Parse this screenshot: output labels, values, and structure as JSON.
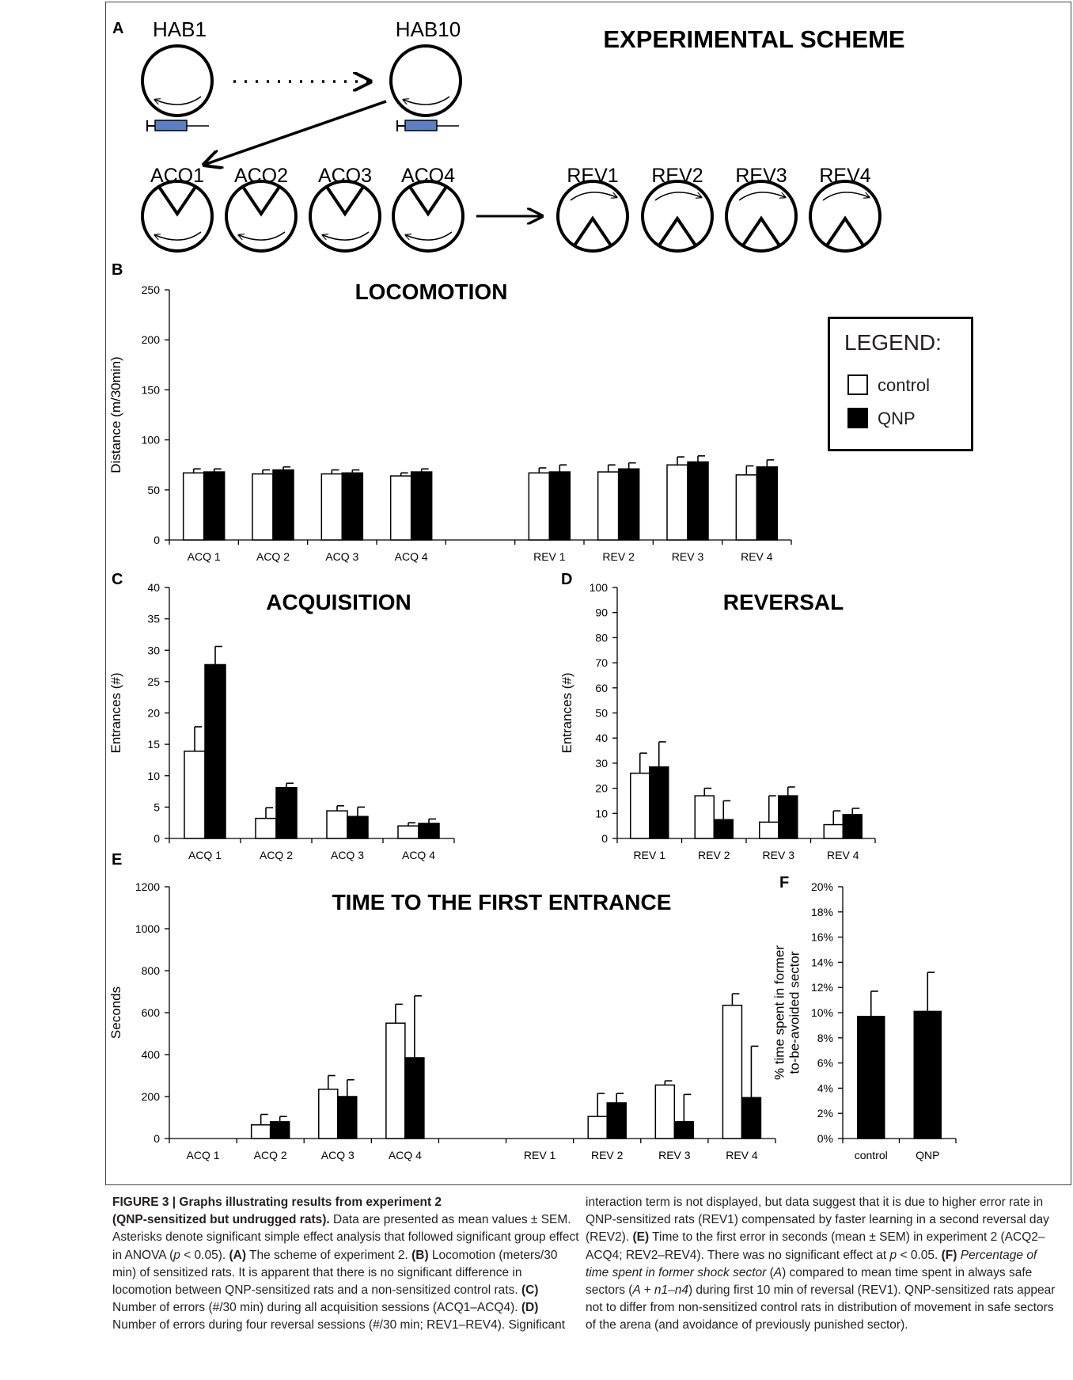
{
  "panels": {
    "A": {
      "label": "A",
      "title": "EXPERIMENTAL SCHEME",
      "habituation": [
        "HAB1",
        "HAB10"
      ],
      "acquisition": [
        "ACQ1",
        "ACQ2",
        "ACQ3",
        "ACQ4"
      ],
      "reversal": [
        "REV1",
        "REV2",
        "REV3",
        "REV4"
      ]
    },
    "B": {
      "label": "B"
    },
    "C": {
      "label": "C"
    },
    "D": {
      "label": "D"
    },
    "E": {
      "label": "E"
    },
    "F": {
      "label": "F"
    }
  },
  "legend": {
    "title": "LEGEND:",
    "items": [
      {
        "label": "control",
        "color": "#ffffff"
      },
      {
        "label": "QNP",
        "color": "#000000"
      }
    ]
  },
  "colors": {
    "control": "#ffffff",
    "qnp": "#000000",
    "scheme_syringe": "#5b7fc4"
  },
  "chart_data": [
    {
      "id": "B",
      "type": "bar",
      "title": "LOCOMOTION",
      "ylabel": "Distance (m/30min)",
      "ylim": [
        0,
        250
      ],
      "yticks": [
        "0",
        "50",
        "100",
        "150",
        "200",
        "250"
      ],
      "categories": [
        "ACQ 1",
        "ACQ 2",
        "ACQ 3",
        "ACQ 4",
        "",
        "REV 1",
        "REV 2",
        "REV 3",
        "REV 4"
      ],
      "series": [
        {
          "name": "control",
          "values": [
            67,
            66,
            66,
            64,
            null,
            67,
            68,
            75,
            65
          ],
          "errors": [
            4,
            4,
            4,
            3,
            null,
            5,
            7,
            8,
            9
          ]
        },
        {
          "name": "QNP",
          "values": [
            68,
            70,
            67,
            68,
            null,
            68,
            71,
            78,
            73
          ],
          "errors": [
            3,
            3,
            3,
            3,
            null,
            7,
            6,
            6,
            7
          ]
        }
      ]
    },
    {
      "id": "C",
      "type": "bar",
      "title": "ACQUISITION",
      "ylabel": "Entrances (#)",
      "ylim": [
        0,
        40
      ],
      "yticks": [
        "0",
        "5",
        "10",
        "15",
        "20",
        "25",
        "30",
        "35",
        "40"
      ],
      "categories": [
        "ACQ 1",
        "ACQ 2",
        "ACQ 3",
        "ACQ 4"
      ],
      "series": [
        {
          "name": "control",
          "values": [
            13.9,
            3.2,
            4.4,
            2.0
          ],
          "errors": [
            3.9,
            1.7,
            0.8,
            0.5
          ]
        },
        {
          "name": "QNP",
          "values": [
            27.7,
            8.1,
            3.5,
            2.4
          ],
          "errors": [
            2.9,
            0.7,
            1.5,
            0.7
          ]
        }
      ]
    },
    {
      "id": "D",
      "type": "bar",
      "title": "REVERSAL",
      "ylabel": "Entrances (#)",
      "ylim": [
        0,
        100
      ],
      "yticks": [
        "0",
        "10",
        "20",
        "30",
        "40",
        "50",
        "60",
        "70",
        "80",
        "90",
        "100"
      ],
      "categories": [
        "REV 1",
        "REV 2",
        "REV 3",
        "REV 4"
      ],
      "series": [
        {
          "name": "control",
          "values": [
            26,
            17,
            6.5,
            5.5
          ],
          "errors": [
            8,
            3,
            10.5,
            5.5
          ]
        },
        {
          "name": "QNP",
          "values": [
            28.5,
            7.5,
            17,
            9.5
          ],
          "errors": [
            10,
            7.5,
            3.5,
            2.5
          ]
        }
      ]
    },
    {
      "id": "E",
      "type": "bar",
      "title": "TIME TO THE FIRST ENTRANCE",
      "ylabel": "Seconds",
      "ylim": [
        0,
        1200
      ],
      "yticks": [
        "0",
        "200",
        "400",
        "600",
        "800",
        "1000",
        "1200"
      ],
      "categories": [
        "ACQ 1",
        "ACQ 2",
        "ACQ 3",
        "ACQ 4",
        "",
        "REV 1",
        "REV 2",
        "REV 3",
        "REV 4"
      ],
      "series": [
        {
          "name": "control",
          "values": [
            null,
            65,
            235,
            550,
            null,
            null,
            105,
            255,
            635
          ],
          "errors": [
            null,
            50,
            65,
            90,
            null,
            null,
            110,
            20,
            55
          ]
        },
        {
          "name": "QNP",
          "values": [
            null,
            80,
            200,
            385,
            null,
            null,
            170,
            80,
            195
          ],
          "errors": [
            null,
            25,
            80,
            295,
            null,
            null,
            45,
            130,
            245
          ]
        }
      ]
    },
    {
      "id": "F",
      "type": "bar",
      "title": "",
      "ylabel": "% time spent in former to-be-avoided sector",
      "ylabel_lines": [
        "% time spent in former",
        "to-be-avoided sector"
      ],
      "ylim": [
        0,
        20
      ],
      "yticks": [
        "0%",
        "2%",
        "4%",
        "6%",
        "8%",
        "10%",
        "12%",
        "14%",
        "16%",
        "18%",
        "20%"
      ],
      "categories": [
        "control",
        "QNP"
      ],
      "series": [
        {
          "name": "",
          "values": [
            9.7,
            10.1
          ],
          "errors": [
            2.0,
            3.1
          ]
        }
      ]
    }
  ],
  "caption": {
    "left": {
      "title": "FIGURE 3 | Graphs illustrating results from experiment 2",
      "subtitle": "(QNP-sensitized but undrugged rats).",
      "t1": " Data are presented as mean values ± SEM. Asterisks denote significant simple effect analysis that followed significant group effect in ANOVA (",
      "p1": "p",
      "t2": " < 0.05). ",
      "a": "(A)",
      "t3": " The scheme of experiment 2. ",
      "b": "(B)",
      "t4": " Locomotion (meters/30 min) of sensitized rats. It is apparent that there is no significant difference in locomotion between QNP-sensitized rats and a non-sensitized control rats. ",
      "c": "(C)",
      "t5": " Number of errors (#/30 min) during all acquisition sessions (ACQ1–ACQ4). ",
      "d": "(D)",
      "t6": " Number of errors during four reversal sessions (#/30 min; REV1–REV4). Significant"
    },
    "right": {
      "t1": "interaction term is not displayed, but data suggest that it is due to higher error rate in QNP-sensitized rats (REV1) compensated by faster learning in a second reversal day (REV2). ",
      "e": "(E)",
      "t2": " Time to the first error in seconds (mean ± SEM) in experiment 2 (ACQ2–ACQ4; REV2–REV4). There was no significant effect at ",
      "p": "p",
      "t3": " < 0.05. ",
      "f": "(F)",
      "f_italic": " Percentage of time spent in former shock sector",
      "t4": " (",
      "a": "A",
      "t5": ") compared to mean time spent in always safe sectors (",
      "an": "A + n1–n4",
      "t6": ") during first 10 min of reversal (REV1). QNP-sensitized rats appear not to differ from non-sensitized control rats in distribution of movement in safe sectors of the arena (and avoidance of previously punished sector)."
    }
  }
}
